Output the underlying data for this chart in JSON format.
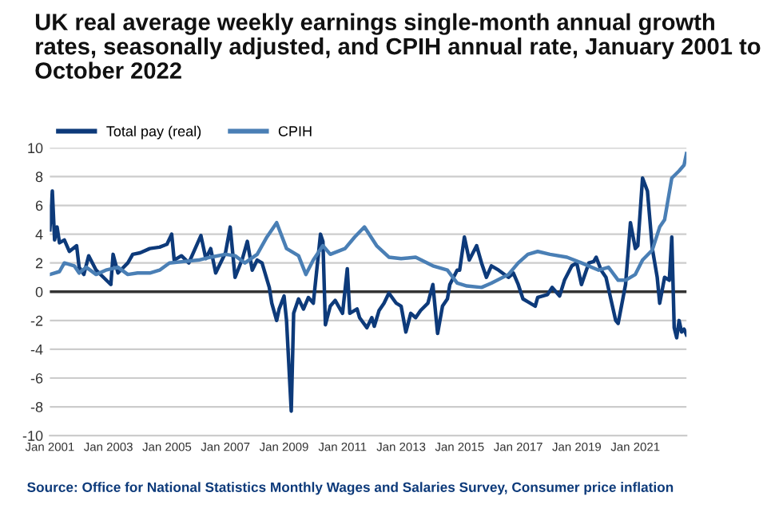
{
  "chart_data": {
    "type": "line",
    "title": "UK real average weekly earnings single-month annual growth rates, seasonally adjusted, and CPIH annual rate, January 2001 to October 2022",
    "annotations": [
      "Source: Office for National Statistics Monthly Wages and Salaries Survey, Consumer price inflation"
    ],
    "series": [
      {
        "name": "Total pay (real)",
        "color": "#0d3a7a",
        "x": [
          "2001-01",
          "2001-02",
          "2001-03",
          "2001-04",
          "2001-05",
          "2001-07",
          "2001-09",
          "2001-12",
          "2002-01",
          "2002-03",
          "2002-05",
          "2002-08",
          "2002-11",
          "2003-02",
          "2003-03",
          "2003-05",
          "2003-09",
          "2003-11",
          "2004-02",
          "2004-06",
          "2004-10",
          "2005-01",
          "2005-03",
          "2005-04",
          "2005-07",
          "2005-10",
          "2006-03",
          "2006-05",
          "2006-07",
          "2006-09",
          "2007-01",
          "2007-03",
          "2007-05",
          "2007-08",
          "2007-10",
          "2007-12",
          "2008-02",
          "2008-04",
          "2008-07",
          "2008-08",
          "2008-10",
          "2008-11",
          "2009-01",
          "2009-02",
          "2009-04",
          "2009-05",
          "2009-07",
          "2009-09",
          "2009-11",
          "2010-01",
          "2010-04",
          "2010-05",
          "2010-06",
          "2010-08",
          "2010-10",
          "2011-01",
          "2011-03",
          "2011-04",
          "2011-07",
          "2011-08",
          "2011-11",
          "2012-01",
          "2012-02",
          "2012-04",
          "2012-06",
          "2012-08",
          "2012-11",
          "2013-01",
          "2013-03",
          "2013-05",
          "2013-07",
          "2013-09",
          "2013-12",
          "2014-02",
          "2014-04",
          "2014-06",
          "2014-08",
          "2014-09",
          "2014-12",
          "2015-01",
          "2015-03",
          "2015-05",
          "2015-08",
          "2015-10",
          "2015-12",
          "2016-02",
          "2016-05",
          "2016-09",
          "2016-11",
          "2017-01",
          "2017-03",
          "2017-05",
          "2017-08",
          "2017-09",
          "2018-01",
          "2018-03",
          "2018-06",
          "2018-08",
          "2018-11",
          "2019-01",
          "2019-03",
          "2019-06",
          "2019-08",
          "2019-09",
          "2019-11",
          "2020-01",
          "2020-03",
          "2020-05",
          "2020-06",
          "2020-09",
          "2020-11",
          "2021-01",
          "2021-02",
          "2021-04",
          "2021-06",
          "2021-08",
          "2021-10",
          "2021-11",
          "2022-01",
          "2022-03",
          "2022-04",
          "2022-05",
          "2022-06",
          "2022-07",
          "2022-08",
          "2022-09",
          "2022-10"
        ],
        "values": [
          4.3,
          7.0,
          3.6,
          4.5,
          3.4,
          3.6,
          2.8,
          3.2,
          1.7,
          1.2,
          2.5,
          1.5,
          1.0,
          0.5,
          2.6,
          1.3,
          2.0,
          2.6,
          2.7,
          3.0,
          3.1,
          3.3,
          4.0,
          2.2,
          2.5,
          2.0,
          3.9,
          2.3,
          3.0,
          1.3,
          2.7,
          4.5,
          1.0,
          2.3,
          3.5,
          1.5,
          2.2,
          2.0,
          0.3,
          -0.8,
          -2.0,
          -1.2,
          -0.3,
          -2.0,
          -8.3,
          -1.5,
          -0.5,
          -1.2,
          -0.4,
          -0.8,
          4.0,
          3.5,
          -2.3,
          -1.0,
          -0.6,
          -1.5,
          1.6,
          -1.5,
          -1.2,
          -1.8,
          -2.5,
          -1.8,
          -2.4,
          -1.3,
          -0.8,
          -0.1,
          -0.8,
          -1.0,
          -2.8,
          -1.5,
          -1.8,
          -1.3,
          -0.8,
          0.5,
          -2.9,
          -1.0,
          -0.5,
          0.5,
          1.5,
          1.5,
          3.8,
          2.2,
          3.2,
          2.0,
          1.0,
          1.8,
          1.5,
          1.0,
          1.3,
          0.5,
          -0.5,
          -0.7,
          -1.0,
          -0.4,
          -0.2,
          0.3,
          -0.3,
          0.8,
          1.8,
          2.0,
          0.5,
          2.0,
          2.1,
          2.4,
          1.5,
          1.0,
          -0.5,
          -2.0,
          -2.2,
          0.5,
          4.8,
          3.0,
          3.2,
          7.9,
          7.0,
          3.0,
          1.0,
          -0.8,
          1.0,
          0.8,
          3.8,
          -2.5,
          -3.2,
          -2.0,
          -2.8,
          -2.6,
          -3.0
        ]
      },
      {
        "name": "CPIH",
        "color": "#4a7fb5",
        "x": [
          "2001-01",
          "2001-05",
          "2001-07",
          "2001-11",
          "2002-01",
          "2002-04",
          "2002-08",
          "2002-12",
          "2003-05",
          "2003-09",
          "2004-01",
          "2004-06",
          "2004-10",
          "2005-02",
          "2005-08",
          "2006-02",
          "2006-07",
          "2007-01",
          "2007-05",
          "2007-09",
          "2008-02",
          "2008-06",
          "2008-10",
          "2009-02",
          "2009-07",
          "2009-10",
          "2010-01",
          "2010-05",
          "2010-08",
          "2011-02",
          "2011-06",
          "2011-10",
          "2012-03",
          "2012-08",
          "2013-01",
          "2013-07",
          "2014-02",
          "2014-08",
          "2014-12",
          "2015-04",
          "2015-10",
          "2016-02",
          "2016-09",
          "2017-01",
          "2017-05",
          "2017-09",
          "2018-02",
          "2018-09",
          "2019-03",
          "2019-10",
          "2020-02",
          "2020-06",
          "2020-09",
          "2021-01",
          "2021-04",
          "2021-08",
          "2021-11",
          "2022-01",
          "2022-04",
          "2022-07",
          "2022-09",
          "2022-10"
        ],
        "values": [
          1.2,
          1.4,
          2.0,
          1.8,
          1.3,
          1.7,
          1.2,
          1.5,
          1.7,
          1.2,
          1.3,
          1.3,
          1.5,
          2.0,
          2.1,
          2.2,
          2.4,
          2.6,
          2.5,
          2.0,
          2.6,
          3.8,
          4.8,
          3.0,
          2.5,
          1.2,
          2.2,
          3.2,
          2.6,
          3.0,
          3.8,
          4.5,
          3.2,
          2.4,
          2.3,
          2.4,
          1.8,
          1.5,
          0.6,
          0.4,
          0.3,
          0.6,
          1.2,
          2.0,
          2.6,
          2.8,
          2.6,
          2.4,
          2.0,
          1.5,
          1.7,
          0.8,
          0.8,
          1.2,
          2.2,
          2.9,
          4.5,
          5.0,
          7.9,
          8.4,
          8.8,
          9.6
        ]
      }
    ],
    "xlim": [
      "2001-01",
      "2022-10"
    ],
    "xticks": [
      {
        "value": "2001-01",
        "label": "Jan 2001"
      },
      {
        "value": "2003-01",
        "label": "Jan 2003"
      },
      {
        "value": "2005-01",
        "label": "Jan 2005"
      },
      {
        "value": "2007-01",
        "label": "Jan 2007"
      },
      {
        "value": "2009-01",
        "label": "Jan 2009"
      },
      {
        "value": "2011-01",
        "label": "Jan 2011"
      },
      {
        "value": "2013-01",
        "label": "Jan 2013"
      },
      {
        "value": "2015-01",
        "label": "Jan 2015"
      },
      {
        "value": "2017-01",
        "label": "Jan 2017"
      },
      {
        "value": "2019-01",
        "label": "Jan 2019"
      },
      {
        "value": "2021-01",
        "label": "Jan 2021"
      }
    ],
    "ylim": [
      -10,
      10
    ],
    "yticks": [
      -10,
      -8,
      -6,
      -4,
      -2,
      0,
      2,
      4,
      6,
      8,
      10
    ],
    "ref_lines": [
      {
        "axis": "y",
        "value": 0,
        "color": "#333333"
      }
    ],
    "grid": "y",
    "legend": "top left",
    "marker": "none",
    "line_style": "solid"
  }
}
